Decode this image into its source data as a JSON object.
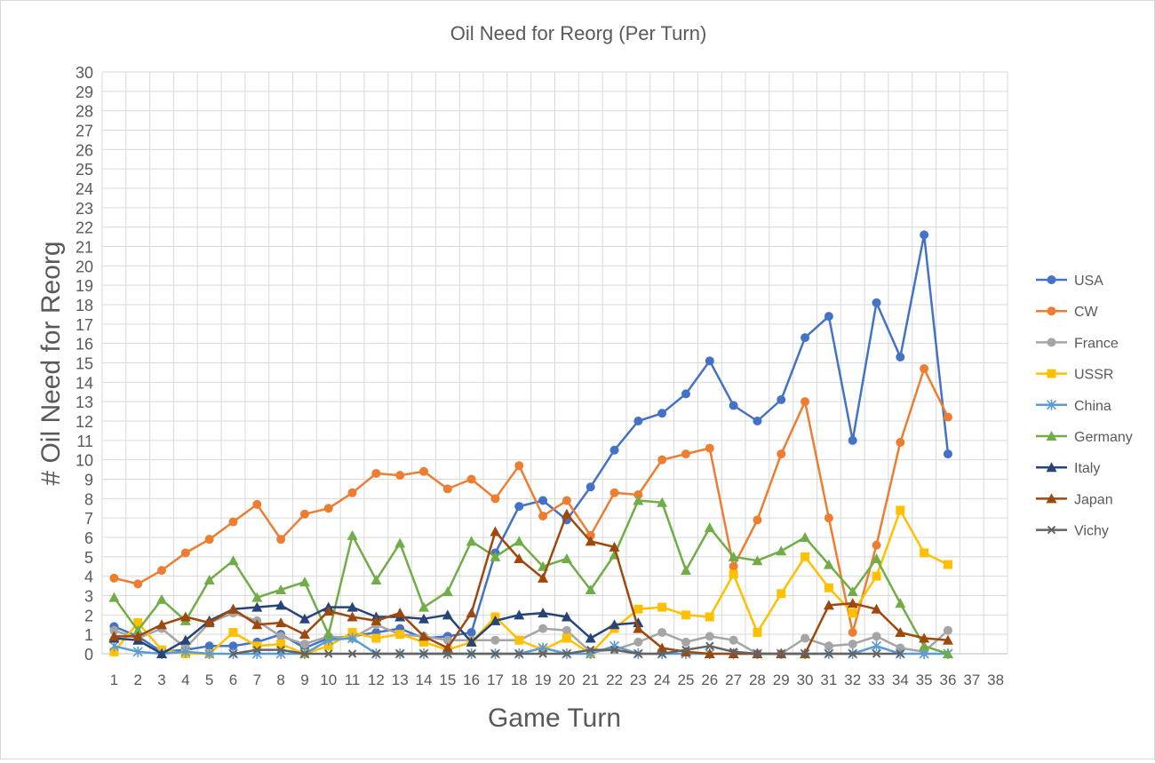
{
  "chart_data": {
    "type": "line",
    "title": "Oil Need for Reorg (Per Turn)",
    "xlabel": "Game Turn",
    "ylabel": "# Oil Need for Reorg",
    "x_categories": [
      1,
      2,
      3,
      4,
      5,
      6,
      7,
      8,
      9,
      10,
      11,
      12,
      13,
      14,
      15,
      16,
      17,
      18,
      19,
      20,
      21,
      22,
      23,
      24,
      25,
      26,
      27,
      28,
      29,
      30,
      31,
      32,
      33,
      34,
      35,
      36,
      37,
      38
    ],
    "ylim": [
      0,
      30
    ],
    "y_tick_step": 1,
    "grid": true,
    "legend_position": "right",
    "series": [
      {
        "name": "USA",
        "color": "#4472C4",
        "marker": "circle",
        "values": [
          1.4,
          0.9,
          0.1,
          0.2,
          0.4,
          0.4,
          0.6,
          1.0,
          0.3,
          0.8,
          0.9,
          1.1,
          1.3,
          0.8,
          0.9,
          1.1,
          5.2,
          7.6,
          7.9,
          6.9,
          8.6,
          10.5,
          12.0,
          12.4,
          13.4,
          15.1,
          12.8,
          12.0,
          13.1,
          16.3,
          17.4,
          11.0,
          18.1,
          15.3,
          21.6,
          10.3
        ]
      },
      {
        "name": "CW",
        "color": "#ED7D31",
        "marker": "circle",
        "values": [
          3.9,
          3.6,
          4.3,
          5.2,
          5.9,
          6.8,
          7.7,
          5.9,
          7.2,
          7.5,
          8.3,
          9.3,
          9.2,
          9.4,
          8.5,
          9.0,
          8.0,
          9.7,
          7.1,
          7.9,
          6.1,
          8.3,
          8.2,
          10.0,
          10.3,
          10.6,
          4.5,
          6.9,
          10.3,
          13.0,
          7.0,
          1.1,
          5.6,
          10.9,
          14.7,
          12.2
        ]
      },
      {
        "name": "France",
        "color": "#A5A5A5",
        "marker": "circle",
        "values": [
          1.2,
          0.8,
          1.3,
          0.3,
          1.6,
          2.1,
          1.7,
          0.9,
          0.5,
          0.9,
          0.8,
          1.5,
          1.0,
          0.9,
          0.7,
          0.7,
          0.7,
          0.7,
          1.3,
          1.2,
          0.1,
          0.2,
          0.6,
          1.1,
          0.6,
          0.9,
          0.7,
          0.0,
          0.0,
          0.8,
          0.4,
          0.5,
          0.9,
          0.3,
          0.1,
          1.2
        ]
      },
      {
        "name": "USSR",
        "color": "#FFC000",
        "marker": "square",
        "values": [
          0.1,
          1.6,
          0.2,
          0.0,
          0.0,
          1.1,
          0.4,
          0.5,
          0.0,
          0.4,
          1.1,
          0.8,
          1.0,
          0.6,
          0.2,
          0.6,
          1.9,
          0.7,
          0.2,
          0.8,
          0.0,
          1.3,
          2.3,
          2.4,
          2.0,
          1.9,
          4.1,
          1.1,
          3.1,
          5.0,
          3.4,
          2.1,
          4.0,
          7.4,
          5.2,
          4.6
        ]
      },
      {
        "name": "China",
        "color": "#5B9BD5",
        "marker": "star",
        "values": [
          0.4,
          0.1,
          0.0,
          0.1,
          0.0,
          0.0,
          0.0,
          0.0,
          0.0,
          0.7,
          0.8,
          0.0,
          0.0,
          0.0,
          0.0,
          0.0,
          0.0,
          0.0,
          0.3,
          0.0,
          0.0,
          0.4,
          0.0,
          0.0,
          0.0,
          0.0,
          0.0,
          0.0,
          0.0,
          0.0,
          0.0,
          0.0,
          0.4,
          0.0,
          0.0,
          0.0
        ]
      },
      {
        "name": "Germany",
        "color": "#70AD47",
        "marker": "triangle",
        "values": [
          2.9,
          1.2,
          2.8,
          1.7,
          3.8,
          4.8,
          2.9,
          3.3,
          3.7,
          1.0,
          6.1,
          3.8,
          5.7,
          2.4,
          3.2,
          5.8,
          5.0,
          5.8,
          4.5,
          4.9,
          3.3,
          5.1,
          7.9,
          7.8,
          4.3,
          6.5,
          5.0,
          4.8,
          5.3,
          6.0,
          4.6,
          3.2,
          4.9,
          2.6,
          0.4,
          0.0
        ]
      },
      {
        "name": "Italy",
        "color": "#264478",
        "marker": "triangle",
        "values": [
          0.8,
          0.7,
          0.0,
          0.7,
          1.7,
          2.3,
          2.4,
          2.5,
          1.8,
          2.4,
          2.4,
          1.9,
          1.9,
          1.8,
          2.0,
          0.6,
          1.7,
          2.0,
          2.1,
          1.9,
          0.8,
          1.5,
          1.6,
          null,
          null,
          null,
          null,
          null,
          null,
          null,
          null,
          null,
          null,
          null,
          null,
          null
        ]
      },
      {
        "name": "Japan",
        "color": "#9E480E",
        "marker": "triangle",
        "values": [
          0.9,
          0.9,
          1.5,
          1.9,
          1.6,
          2.3,
          1.5,
          1.6,
          1.0,
          2.2,
          1.9,
          1.7,
          2.1,
          0.9,
          0.3,
          2.1,
          6.3,
          4.9,
          3.9,
          7.2,
          5.8,
          5.5,
          1.3,
          0.3,
          0.1,
          0.0,
          0.0,
          0.0,
          0.0,
          0.0,
          2.5,
          2.6,
          2.3,
          1.1,
          0.8,
          0.7
        ]
      },
      {
        "name": "Vichy",
        "color": "#636363",
        "marker": "x",
        "values": [
          null,
          null,
          null,
          null,
          null,
          0.0,
          0.2,
          0.2,
          0.0,
          0.0,
          0.0,
          0.0,
          0.0,
          0.0,
          0.0,
          0.0,
          0.0,
          0.0,
          0.0,
          0.0,
          0.2,
          0.2,
          0.0,
          0.0,
          0.2,
          0.4,
          0.1,
          0.0,
          0.0,
          0.0,
          0.0,
          0.0,
          0.0,
          0.0,
          null,
          null
        ]
      }
    ]
  }
}
